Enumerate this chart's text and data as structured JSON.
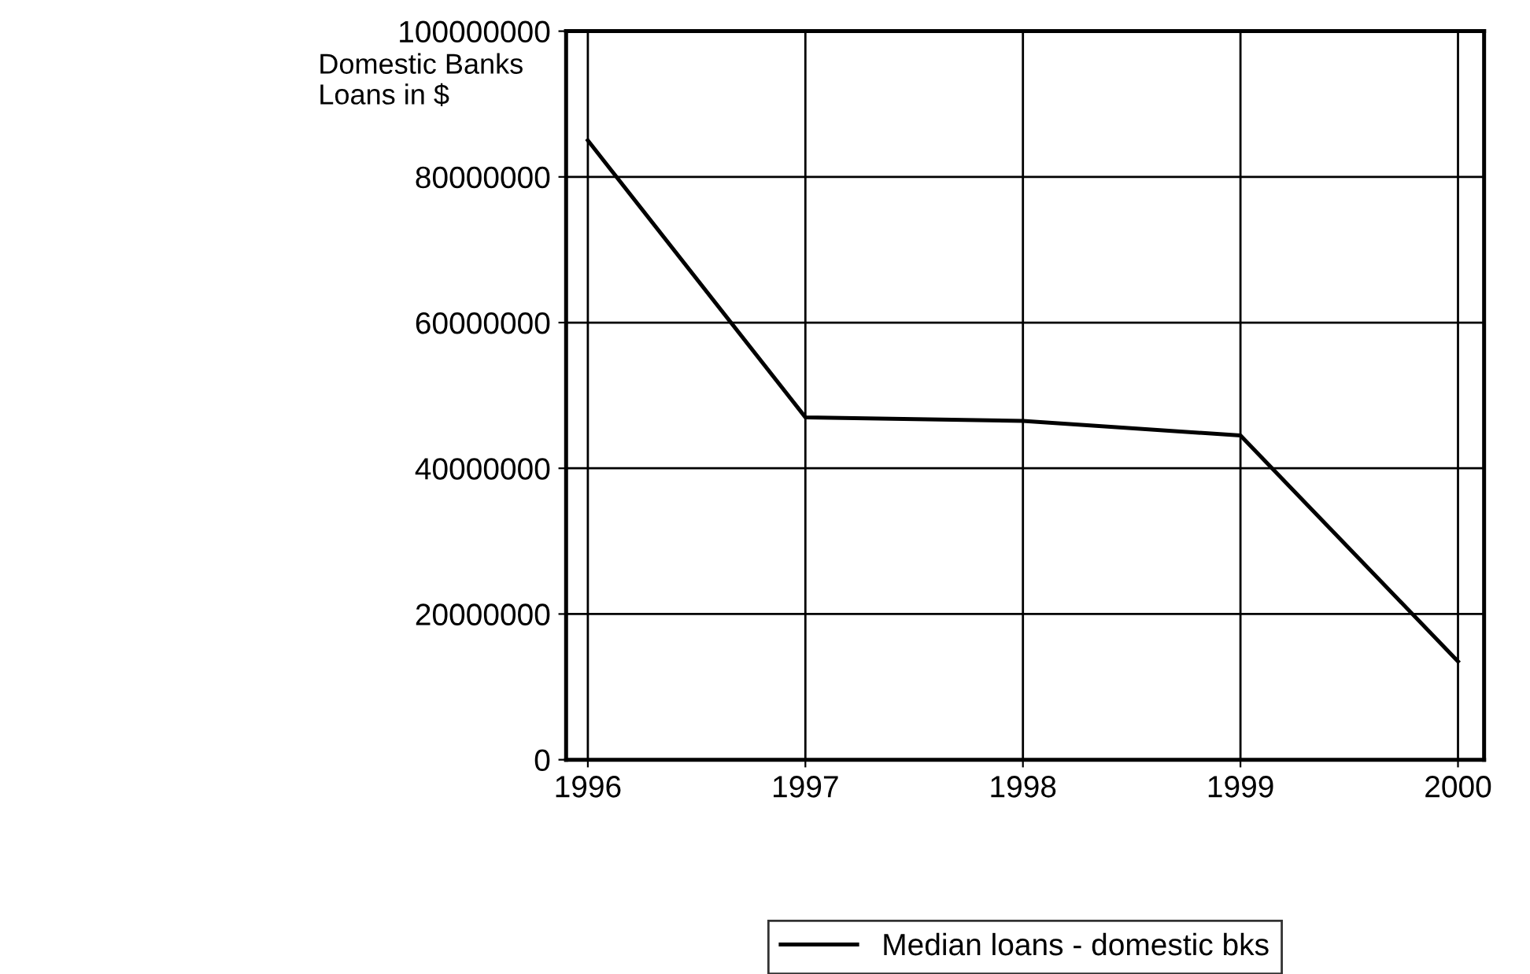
{
  "chart_data": {
    "type": "line",
    "ylabel": "Domestic Banks\nLoans in $",
    "categories": [
      "1996",
      "1997",
      "1998",
      "1999",
      "2000"
    ],
    "series": [
      {
        "name": "Median loans - domestic bks",
        "color": "#000000",
        "values": [
          85000000,
          47000000,
          46500000,
          44500000,
          13500000
        ]
      }
    ],
    "ylim": [
      0,
      100000000
    ],
    "yticks": [
      0,
      20000000,
      40000000,
      60000000,
      80000000,
      100000000
    ],
    "grid": true,
    "legend": "bottom",
    "marker": "none",
    "line_style": "solid"
  }
}
